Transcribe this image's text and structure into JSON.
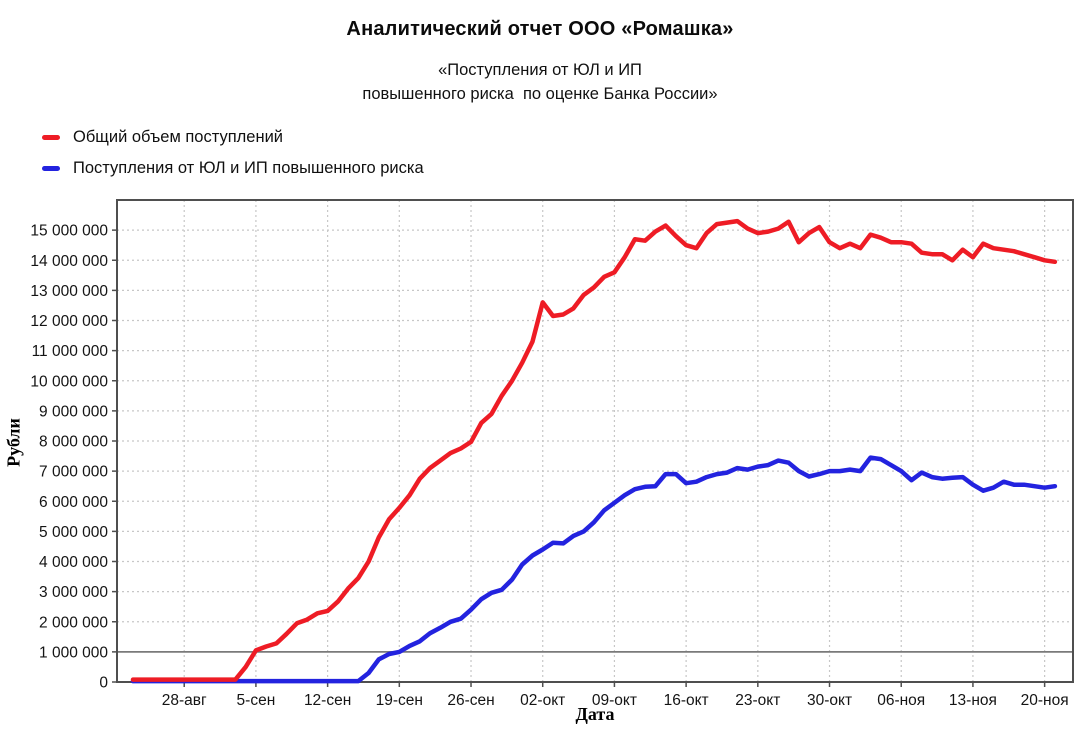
{
  "header": {
    "title": "Аналитический отчет ООО «Ромашка»",
    "subtitle": "«Поступления от ЮЛ и ИП\nповышенного риска  по оценке Банка России»"
  },
  "legend": {
    "items": [
      {
        "label": "Общий объем поступлений",
        "color": "#ee1c25"
      },
      {
        "label": "Поступления от ЮЛ и ИП повышенного риска",
        "color": "#2323df"
      }
    ]
  },
  "axes": {
    "y_title": "Рубли",
    "x_title": "Дата"
  },
  "chart_data": {
    "type": "line",
    "title": "Аналитический отчет ООО «Ромашка»",
    "subtitle": "«Поступления от ЮЛ и ИП повышенного риска по оценке Банка России»",
    "xlabel": "Дата",
    "ylabel": "Рубли",
    "ylim": [
      0,
      16000000
    ],
    "y_tick_step": 1000000,
    "y_tick_labels": [
      "0",
      "1 000 000",
      "2 000 000",
      "3 000 000",
      "4 000 000",
      "5 000 000",
      "6 000 000",
      "7 000 000",
      "8 000 000",
      "9 000 000",
      "10 000 000",
      "11 000 000",
      "12 000 000",
      "13 000 000",
      "14 000 000",
      "15 000 000"
    ],
    "x_tick_labels": [
      "28-авг",
      "5-сен",
      "12-сен",
      "19-сен",
      "26-сен",
      "02-окт",
      "09-окт",
      "16-окт",
      "23-окт",
      "30-окт",
      "06-ноя",
      "13-ноя",
      "20-ноя"
    ],
    "x_tick_indices": [
      5,
      12,
      19,
      26,
      33,
      40,
      47,
      54,
      61,
      68,
      75,
      82,
      89
    ],
    "n_points": 91,
    "reference_line_y": 1000000,
    "grid": {
      "color": "#c7c7c7",
      "dashed": true,
      "border_color": "#4f4f4f",
      "reference_color": "#7a7a7a"
    },
    "legend_position": "top-left",
    "series": [
      {
        "name": "Поступления от ЮЛ и ИП повышенного риска",
        "color": "#2323df",
        "values": [
          30000,
          30000,
          30000,
          30000,
          30000,
          30000,
          30000,
          30000,
          30000,
          30000,
          30000,
          30000,
          30000,
          30000,
          30000,
          30000,
          30000,
          30000,
          30000,
          30000,
          30000,
          30000,
          30000,
          300000,
          750000,
          930000,
          1000000,
          1200000,
          1350000,
          1620000,
          1800000,
          2000000,
          2100000,
          2400000,
          2750000,
          2960000,
          3060000,
          3400000,
          3900000,
          4200000,
          4400000,
          4620000,
          4600000,
          4850000,
          5000000,
          5300000,
          5700000,
          5950000,
          6200000,
          6400000,
          6480000,
          6500000,
          6900000,
          6900000,
          6600000,
          6650000,
          6800000,
          6900000,
          6950000,
          7100000,
          7050000,
          7150000,
          7200000,
          7350000,
          7280000,
          7000000,
          6820000,
          6900000,
          7000000,
          7000000,
          7050000,
          7000000,
          7450000,
          7400000,
          7200000,
          7000000,
          6700000,
          6950000,
          6800000,
          6750000,
          6780000,
          6800000,
          6550000,
          6350000,
          6450000,
          6650000,
          6550000,
          6550000,
          6500000,
          6450000,
          6500000
        ]
      },
      {
        "name": "Общий объем поступлений",
        "color": "#ee1c25",
        "values": [
          80000,
          80000,
          80000,
          80000,
          80000,
          80000,
          80000,
          80000,
          80000,
          80000,
          80000,
          500000,
          1050000,
          1180000,
          1280000,
          1600000,
          1950000,
          2070000,
          2280000,
          2360000,
          2670000,
          3100000,
          3450000,
          4000000,
          4800000,
          5400000,
          5780000,
          6200000,
          6750000,
          7100000,
          7350000,
          7600000,
          7750000,
          7970000,
          8600000,
          8900000,
          9500000,
          10000000,
          10600000,
          11300000,
          12600000,
          12150000,
          12200000,
          12400000,
          12850000,
          13100000,
          13450000,
          13600000,
          14100000,
          14700000,
          14650000,
          14950000,
          15150000,
          14800000,
          14500000,
          14400000,
          14900000,
          15200000,
          15250000,
          15300000,
          15050000,
          14900000,
          14950000,
          15050000,
          15280000,
          14600000,
          14900000,
          15100000,
          14600000,
          14400000,
          14550000,
          14400000,
          14850000,
          14750000,
          14600000,
          14600000,
          14550000,
          14250000,
          14200000,
          14200000,
          14000000,
          14350000,
          14100000,
          14550000,
          14400000,
          14350000,
          14300000,
          14200000,
          14100000,
          14000000,
          13950000
        ]
      }
    ],
    "layout": {
      "plot_left": 117,
      "plot_top": 200,
      "plot_right": 1073,
      "plot_bottom": 682,
      "x_start": 133,
      "x_step": 10.243,
      "tick_len": 5,
      "y_label_font": 15.5,
      "x_label_font": 15.5,
      "line_width": 4.5
    }
  }
}
